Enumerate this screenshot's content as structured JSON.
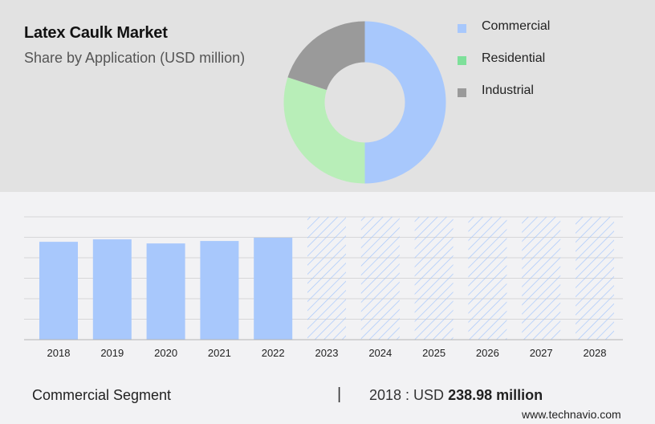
{
  "header": {
    "title": "Latex Caulk Market",
    "subtitle": "Share by Application (USD million)"
  },
  "legend": [
    {
      "label": "Commercial",
      "color": "#a8c8fc"
    },
    {
      "label": "Residential",
      "color": "#7ee09a"
    },
    {
      "label": "Industrial",
      "color": "#9a9a9a"
    }
  ],
  "footer": {
    "segment": "Commercial Segment",
    "separator": "|",
    "year_value_prefix": "2018 : USD",
    "value": "238.98 million",
    "site": "www.technavio.com"
  },
  "chart_data": [
    {
      "type": "pie",
      "title": "Latex Caulk Market",
      "subtitle": "Share by Application (USD million)",
      "donut": true,
      "categories": [
        "Commercial",
        "Residential",
        "Industrial"
      ],
      "values": [
        50,
        30,
        20
      ],
      "colors": [
        "#a8c8fc",
        "#b8eeb8",
        "#9a9a9a"
      ],
      "legend_position": "right"
    },
    {
      "type": "bar",
      "title": "Commercial Segment",
      "categories": [
        "2018",
        "2019",
        "2020",
        "2021",
        "2022",
        "2023",
        "2024",
        "2025",
        "2026",
        "2027",
        "2028"
      ],
      "series": [
        {
          "name": "Commercial (actual)",
          "values": [
            238.98,
            245,
            235,
            241,
            249,
            null,
            null,
            null,
            null,
            null,
            null
          ]
        },
        {
          "name": "Commercial (forecast, hatched)",
          "values": [
            null,
            null,
            null,
            null,
            null,
            300,
            300,
            300,
            300,
            300,
            300
          ]
        }
      ],
      "xlabel": "",
      "ylabel": "",
      "ylim": [
        0,
        300
      ],
      "grid": true,
      "gridlines": [
        0,
        50,
        100,
        150,
        200,
        250,
        300
      ],
      "annotation": "2018 : USD 238.98 million"
    }
  ]
}
